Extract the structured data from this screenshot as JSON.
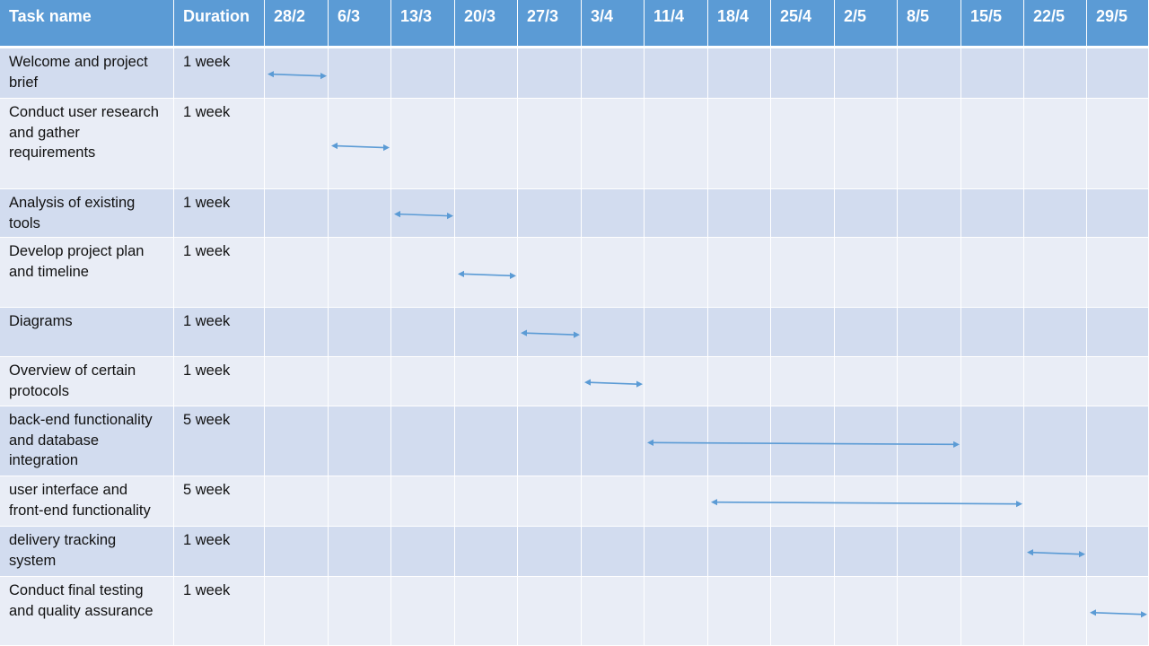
{
  "chart_data": {
    "type": "gantt",
    "columns": [
      "Task name",
      "Duration"
    ],
    "weeks": [
      "28/2",
      "6/3",
      "13/3",
      "20/3",
      "27/3",
      "3/4",
      "11/4",
      "18/4",
      "25/4",
      "2/5",
      "8/5",
      "15/5",
      "22/5",
      "29/5"
    ],
    "tasks": [
      {
        "name": "Welcome and project brief",
        "duration": "1 week",
        "start": 0,
        "weeks": 1
      },
      {
        "name": "Conduct user research and gather requirements",
        "duration": "1 week",
        "start": 1,
        "weeks": 1
      },
      {
        "name": "Analysis of existing tools",
        "duration": "1 week",
        "start": 2,
        "weeks": 1
      },
      {
        "name": "Develop project plan and timeline",
        "duration": "1 week",
        "start": 3,
        "weeks": 1
      },
      {
        "name": "Diagrams",
        "duration": "1 week",
        "start": 4,
        "weeks": 1
      },
      {
        "name": "Overview of certain protocols",
        "duration": "1 week",
        "start": 5,
        "weeks": 1
      },
      {
        "name": "back-end functionality and database integration",
        "duration": "5 week",
        "start": 6,
        "weeks": 5
      },
      {
        "name": "user interface and front-end functionality",
        "duration": "5 week",
        "start": 7,
        "weeks": 5
      },
      {
        "name": "delivery tracking system",
        "duration": "1 week",
        "start": 12,
        "weeks": 1
      },
      {
        "name": "Conduct final testing and quality assurance",
        "duration": "1 week",
        "start": 13,
        "weeks": 1
      }
    ],
    "colors": {
      "header": "#5b9bd5",
      "row_dark": "#d2dcef",
      "row_light": "#e9edf6",
      "arrow": "#5b9bd5"
    }
  }
}
